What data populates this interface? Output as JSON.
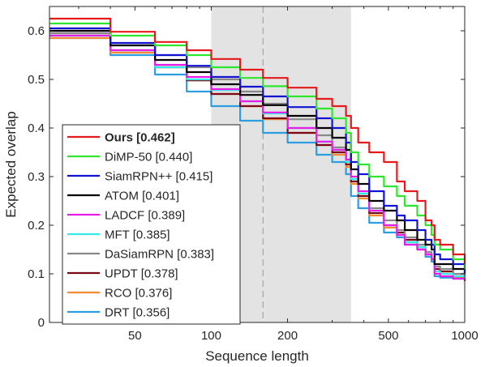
{
  "chart_data": {
    "type": "line",
    "title": "",
    "xlabel": "Sequence length",
    "ylabel": "Expected overlap",
    "x_scale": "log",
    "xlim": [
      23,
      1000
    ],
    "ylim": [
      0,
      0.65
    ],
    "x_ticks": [
      50,
      100,
      200,
      500,
      1000
    ],
    "x_tick_labels": [
      "50",
      "100",
      "200",
      "500",
      "1000"
    ],
    "y_ticks": [
      0,
      0.1,
      0.2,
      0.3,
      0.4,
      0.5,
      0.6
    ],
    "y_tick_labels": [
      "0",
      "0.1",
      "0.2",
      "0.3",
      "0.4",
      "0.5",
      "0.6"
    ],
    "shaded_interval": [
      100,
      356
    ],
    "reference_line_x": 160,
    "grid": false,
    "legend_position": "bottom-left",
    "series": [
      {
        "name": "Ours [0.462]",
        "bold": true,
        "color": "#e41a1c",
        "x": [
          23,
          40,
          60,
          80,
          100,
          130,
          160,
          200,
          260,
          300,
          340,
          356,
          380,
          420,
          480,
          540,
          580,
          650,
          700,
          740,
          760,
          800,
          900,
          1000
        ],
        "y": [
          0.625,
          0.598,
          0.577,
          0.56,
          0.542,
          0.52,
          0.503,
          0.483,
          0.46,
          0.445,
          0.425,
          0.4,
          0.37,
          0.35,
          0.33,
          0.29,
          0.27,
          0.25,
          0.21,
          0.2,
          0.17,
          0.16,
          0.14,
          0.12
        ]
      },
      {
        "name": "DiMP-50 [0.440]",
        "bold": false,
        "color": "#2ee62e",
        "x": [
          23,
          40,
          60,
          80,
          100,
          130,
          160,
          200,
          260,
          300,
          340,
          356,
          380,
          420,
          480,
          540,
          580,
          650,
          700,
          740,
          760,
          800,
          900,
          1000
        ],
        "y": [
          0.615,
          0.59,
          0.57,
          0.55,
          0.525,
          0.503,
          0.486,
          0.465,
          0.44,
          0.42,
          0.39,
          0.35,
          0.325,
          0.3,
          0.28,
          0.26,
          0.24,
          0.22,
          0.2,
          0.18,
          0.16,
          0.15,
          0.13,
          0.11
        ]
      },
      {
        "name": "SiamRPN++ [0.415]",
        "bold": false,
        "color": "#1212d4",
        "x": [
          23,
          40,
          60,
          80,
          100,
          130,
          160,
          200,
          260,
          300,
          340,
          356,
          380,
          420,
          480,
          540,
          580,
          650,
          700,
          740,
          760,
          800,
          900,
          1000
        ],
        "y": [
          0.605,
          0.575,
          0.55,
          0.528,
          0.505,
          0.485,
          0.465,
          0.443,
          0.42,
          0.4,
          0.37,
          0.33,
          0.305,
          0.27,
          0.24,
          0.22,
          0.21,
          0.19,
          0.17,
          0.16,
          0.14,
          0.13,
          0.12,
          0.1
        ]
      },
      {
        "name": "ATOM [0.401]",
        "bold": false,
        "color": "#000000",
        "x": [
          23,
          40,
          60,
          80,
          100,
          130,
          160,
          200,
          260,
          300,
          340,
          356,
          380,
          420,
          480,
          540,
          580,
          650,
          700,
          740,
          760,
          800,
          900,
          1000
        ],
        "y": [
          0.6,
          0.57,
          0.54,
          0.515,
          0.49,
          0.468,
          0.447,
          0.425,
          0.4,
          0.38,
          0.355,
          0.315,
          0.285,
          0.25,
          0.23,
          0.21,
          0.19,
          0.17,
          0.16,
          0.15,
          0.12,
          0.12,
          0.11,
          0.1
        ]
      },
      {
        "name": "LADCF [0.389]",
        "bold": false,
        "color": "#e81ee8",
        "x": [
          23,
          40,
          60,
          80,
          100,
          130,
          160,
          200,
          260,
          300,
          340,
          356,
          380,
          420,
          480,
          540,
          580,
          650,
          700,
          740,
          760,
          800,
          900,
          1000
        ],
        "y": [
          0.59,
          0.56,
          0.53,
          0.505,
          0.48,
          0.455,
          0.432,
          0.4,
          0.372,
          0.355,
          0.335,
          0.3,
          0.27,
          0.23,
          0.2,
          0.18,
          0.16,
          0.15,
          0.14,
          0.13,
          0.1,
          0.095,
          0.09,
          0.085
        ]
      },
      {
        "name": "MFT [0.385]",
        "bold": false,
        "color": "#33eaea",
        "x": [
          23,
          40,
          60,
          80,
          100,
          130,
          160,
          200,
          260,
          300,
          340,
          356,
          380,
          420,
          480,
          540,
          580,
          650,
          700,
          740,
          760,
          800,
          900,
          1000
        ],
        "y": [
          0.59,
          0.56,
          0.525,
          0.5,
          0.478,
          0.455,
          0.43,
          0.4,
          0.372,
          0.355,
          0.33,
          0.295,
          0.265,
          0.23,
          0.2,
          0.18,
          0.165,
          0.155,
          0.14,
          0.13,
          0.105,
          0.1,
          0.095,
          0.09
        ]
      },
      {
        "name": "DaSiamRPN [0.383]",
        "bold": false,
        "color": "#888888",
        "x": [
          23,
          40,
          60,
          80,
          100,
          130,
          160,
          200,
          260,
          300,
          340,
          356,
          380,
          420,
          480,
          540,
          580,
          650,
          700,
          740,
          760,
          800,
          900,
          1000
        ],
        "y": [
          0.595,
          0.57,
          0.55,
          0.525,
          0.5,
          0.475,
          0.45,
          0.418,
          0.385,
          0.36,
          0.335,
          0.295,
          0.265,
          0.235,
          0.21,
          0.19,
          0.175,
          0.16,
          0.145,
          0.13,
          0.115,
          0.11,
          0.1,
          0.095
        ]
      },
      {
        "name": "UPDT [0.378]",
        "bold": false,
        "color": "#7a0a1a",
        "x": [
          23,
          40,
          60,
          80,
          100,
          130,
          160,
          200,
          260,
          300,
          340,
          356,
          380,
          420,
          480,
          540,
          580,
          650,
          700,
          740,
          760,
          800,
          900,
          1000
        ],
        "y": [
          0.595,
          0.56,
          0.525,
          0.498,
          0.47,
          0.445,
          0.42,
          0.39,
          0.365,
          0.35,
          0.325,
          0.29,
          0.26,
          0.225,
          0.2,
          0.185,
          0.17,
          0.155,
          0.14,
          0.13,
          0.11,
          0.105,
          0.095,
          0.09
        ]
      },
      {
        "name": "RCO [0.376]",
        "bold": false,
        "color": "#f28c33",
        "x": [
          23,
          40,
          60,
          80,
          100,
          130,
          160,
          200,
          260,
          300,
          340,
          356,
          380,
          420,
          480,
          540,
          580,
          650,
          700,
          740,
          760,
          800,
          900,
          1000
        ],
        "y": [
          0.585,
          0.555,
          0.525,
          0.498,
          0.47,
          0.445,
          0.418,
          0.39,
          0.365,
          0.345,
          0.32,
          0.285,
          0.255,
          0.22,
          0.195,
          0.18,
          0.165,
          0.15,
          0.14,
          0.13,
          0.105,
          0.1,
          0.092,
          0.088
        ]
      },
      {
        "name": "DRT [0.356]",
        "bold": false,
        "color": "#2a9ee0",
        "x": [
          23,
          40,
          60,
          80,
          100,
          130,
          160,
          200,
          260,
          300,
          340,
          356,
          380,
          420,
          480,
          540,
          580,
          650,
          700,
          740,
          760,
          800,
          900,
          1000
        ],
        "y": [
          0.585,
          0.55,
          0.51,
          0.475,
          0.445,
          0.415,
          0.39,
          0.37,
          0.345,
          0.33,
          0.305,
          0.26,
          0.235,
          0.205,
          0.185,
          0.175,
          0.16,
          0.15,
          0.135,
          0.125,
          0.095,
          0.092,
          0.09,
          0.085
        ]
      }
    ]
  }
}
